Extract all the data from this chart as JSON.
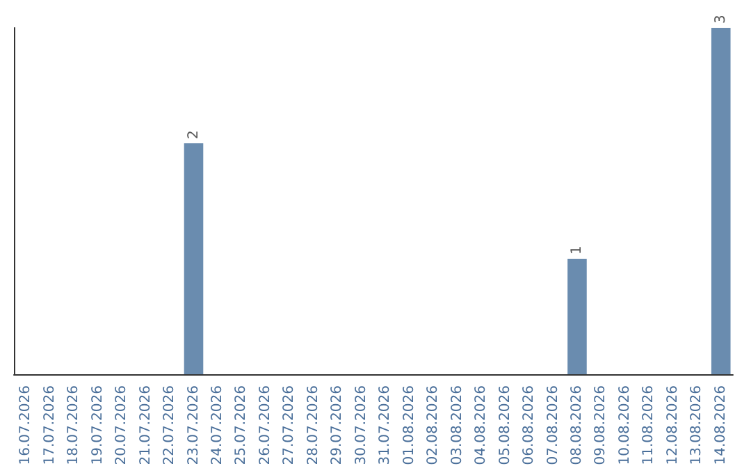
{
  "chart_data": {
    "type": "bar",
    "categories": [
      "16.07.2026",
      "17.07.2026",
      "18.07.2026",
      "19.07.2026",
      "20.07.2026",
      "21.07.2026",
      "22.07.2026",
      "23.07.2026",
      "24.07.2026",
      "25.07.2026",
      "26.07.2026",
      "27.07.2026",
      "28.07.2026",
      "29.07.2026",
      "30.07.2026",
      "31.07.2026",
      "01.08.2026",
      "02.08.2026",
      "03.08.2026",
      "04.08.2026",
      "05.08.2026",
      "06.08.2026",
      "07.08.2026",
      "08.08.2026",
      "09.08.2026",
      "10.08.2026",
      "11.08.2026",
      "12.08.2026",
      "13.08.2026",
      "14.08.2026"
    ],
    "values": [
      null,
      null,
      null,
      null,
      null,
      null,
      null,
      2,
      null,
      null,
      null,
      null,
      null,
      null,
      null,
      null,
      null,
      null,
      null,
      null,
      null,
      null,
      null,
      1,
      null,
      null,
      null,
      null,
      null,
      3
    ],
    "color": "#6a8caf",
    "ylim": [
      0,
      3
    ],
    "data_labels": true,
    "tick_labels": "x"
  }
}
